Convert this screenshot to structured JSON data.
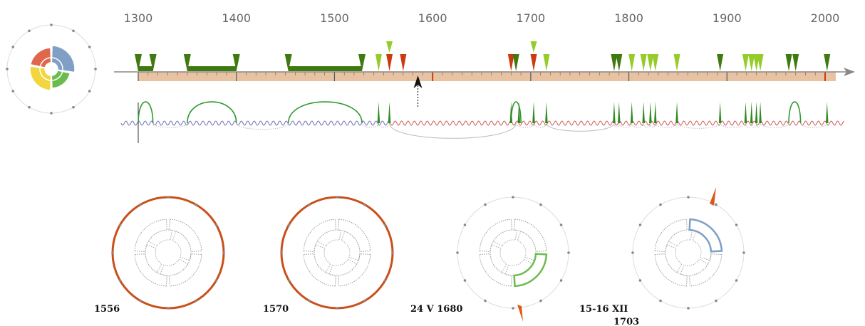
{
  "colors": {
    "dark_green": "#3f7a10",
    "light_green": "#96cc2a",
    "red": "#cc3a10",
    "tan": "#e8c3a3",
    "blue": "#7f9fc5",
    "orange_ring": "#c9501a",
    "sector_green": "#6dbb4f",
    "sector_yellow": "#f2d640",
    "sector_red": "#e0674b",
    "wave_blue": "#6e6eb8",
    "wave_red": "#d05a5a",
    "arc_gray": "#bbbbbb"
  },
  "timeline": {
    "years": [
      "1300",
      "1400",
      "1500",
      "1600",
      "1700",
      "1800",
      "1900",
      "2000"
    ],
    "pointer_year": 1585,
    "periods": [
      {
        "start": 1300,
        "end": 1315
      },
      {
        "start": 1350,
        "end": 1400
      },
      {
        "start": 1453,
        "end": 1528
      }
    ],
    "events": [
      {
        "year": 1545,
        "type": "light"
      },
      {
        "year": 1556,
        "type": "red"
      },
      {
        "year": 1556,
        "type": "light",
        "stack": 1
      },
      {
        "year": 1570,
        "type": "red"
      },
      {
        "year": 1680,
        "type": "red"
      },
      {
        "year": 1685,
        "type": "dark"
      },
      {
        "year": 1703,
        "type": "red"
      },
      {
        "year": 1703,
        "type": "light",
        "stack": 1
      },
      {
        "year": 1716,
        "type": "light"
      },
      {
        "year": 1785,
        "type": "dark"
      },
      {
        "year": 1790,
        "type": "dark"
      },
      {
        "year": 1803,
        "type": "light"
      },
      {
        "year": 1815,
        "type": "light"
      },
      {
        "year": 1822,
        "type": "light"
      },
      {
        "year": 1827,
        "type": "light"
      },
      {
        "year": 1849,
        "type": "light"
      },
      {
        "year": 1893,
        "type": "dark"
      },
      {
        "year": 1919,
        "type": "light"
      },
      {
        "year": 1925,
        "type": "light"
      },
      {
        "year": 1930,
        "type": "light"
      },
      {
        "year": 1934,
        "type": "light"
      },
      {
        "year": 1963,
        "type": "dark"
      },
      {
        "year": 1970,
        "type": "dark"
      },
      {
        "year": 2002,
        "type": "dark"
      }
    ],
    "upper_arcs": [
      {
        "from": 1300,
        "to": 1315
      },
      {
        "from": 1350,
        "to": 1400
      },
      {
        "from": 1453,
        "to": 1528
      },
      {
        "from": 1680,
        "to": 1690
      },
      {
        "from": 1963,
        "to": 1975
      }
    ],
    "spikes": [
      1545,
      1556,
      1680,
      1688,
      1703,
      1716,
      1785,
      1790,
      1803,
      1815,
      1822,
      1827,
      1849,
      1893,
      1919,
      1925,
      1930,
      1934,
      2002
    ],
    "lower_arcs": [
      {
        "from": 1315,
        "to": 1350
      },
      {
        "from": 1400,
        "to": 1453
      },
      {
        "from": 1528,
        "to": 1545
      },
      {
        "from": 1545,
        "to": 1556
      },
      {
        "from": 1556,
        "to": 1685
      },
      {
        "from": 1685,
        "to": 1703
      },
      {
        "from": 1703,
        "to": 1716
      },
      {
        "from": 1716,
        "to": 1785
      },
      {
        "from": 1785,
        "to": 1790
      },
      {
        "from": 1790,
        "to": 1803
      },
      {
        "from": 1803,
        "to": 1815
      },
      {
        "from": 1815,
        "to": 1822
      },
      {
        "from": 1822,
        "to": 1827
      },
      {
        "from": 1827,
        "to": 1849
      },
      {
        "from": 1849,
        "to": 1893
      },
      {
        "from": 1893,
        "to": 1919
      },
      {
        "from": 1919,
        "to": 1925
      },
      {
        "from": 1925,
        "to": 1930
      },
      {
        "from": 1930,
        "to": 1934
      },
      {
        "from": 1934,
        "to": 1963
      },
      {
        "from": 1975,
        "to": 2002
      }
    ],
    "wave_color_change_year": 1556
  },
  "overview_glyph": {
    "sectors": [
      "blue",
      "green",
      "yellow",
      "red"
    ]
  },
  "glyphs": [
    {
      "label": "1556",
      "ring": true,
      "highlight": null,
      "marker": null
    },
    {
      "label": "1570",
      "ring": true,
      "highlight": null,
      "marker": null
    },
    {
      "label": "24 V 1680",
      "ring": false,
      "highlight": "green",
      "marker": "bottom"
    },
    {
      "label": "15-16 XII",
      "label2": "1703",
      "ring": false,
      "highlight": "blue",
      "marker": "top"
    }
  ]
}
